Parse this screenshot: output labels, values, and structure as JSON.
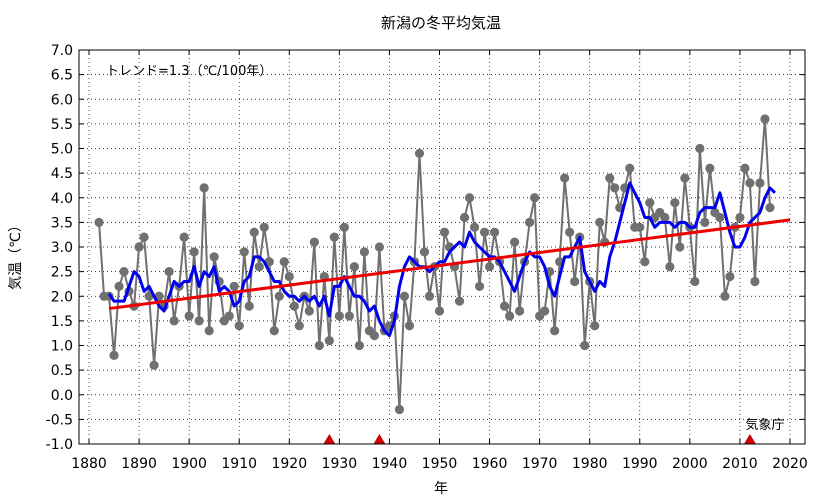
{
  "chart_data": {
    "type": "line",
    "title": "新潟の冬平均気温",
    "xlabel": "年",
    "ylabel": "気温（℃）",
    "trend_label": "トレンド=1.3（℃/100年）",
    "credit": "気象庁",
    "xlim": [
      1878,
      2023
    ],
    "ylim": [
      -1.0,
      7.0
    ],
    "x_ticks": [
      1880,
      1890,
      1900,
      1910,
      1920,
      1930,
      1940,
      1950,
      1960,
      1970,
      1980,
      1990,
      2000,
      2010,
      2020
    ],
    "y_ticks": [
      "-1.0",
      "-0.5",
      "0.0",
      "0.5",
      "1.0",
      "1.5",
      "2.0",
      "2.5",
      "3.0",
      "3.5",
      "4.0",
      "4.5",
      "5.0",
      "5.5",
      "6.0",
      "6.5",
      "7.0"
    ],
    "grid": true,
    "colors": {
      "annual": "#707070",
      "moving_avg": "#0000ee",
      "trend": "#ee0000",
      "markers": "#cc0000"
    },
    "series": [
      {
        "kind": "annual",
        "x_start": 1882,
        "values": [
          3.5,
          2.0,
          2.0,
          0.8,
          2.2,
          2.5,
          2.1,
          1.8,
          3.0,
          3.2,
          2.0,
          0.6,
          2.0,
          1.8,
          2.5,
          1.5,
          2.2,
          3.2,
          1.6,
          2.9,
          1.5,
          4.2,
          1.3,
          2.8,
          2.3,
          1.5,
          1.6,
          2.2,
          1.4,
          2.9,
          1.8,
          3.3,
          2.6,
          3.4,
          2.7,
          1.3,
          2.0,
          2.7,
          2.4,
          1.8,
          1.4,
          2.0,
          1.7,
          3.1,
          1.0,
          2.4,
          1.1,
          3.2,
          1.6,
          3.4,
          1.6,
          2.6,
          1.0,
          2.9,
          1.3,
          1.2,
          3.0,
          1.3,
          1.4,
          1.6,
          -0.3,
          2.0,
          1.4,
          2.7,
          4.9,
          2.9,
          2.0,
          2.6,
          1.7,
          3.3,
          3.0,
          2.6,
          1.9,
          3.6,
          4.0,
          3.4,
          2.2,
          3.3,
          2.6,
          3.3,
          2.7,
          1.8,
          1.6,
          3.1,
          1.7,
          2.7,
          3.5,
          4.0,
          1.6,
          1.7,
          2.5,
          1.3,
          2.7,
          4.4,
          3.3,
          2.3,
          3.2,
          1.0,
          2.3,
          1.4,
          3.5,
          3.1,
          4.4,
          4.2,
          3.8,
          4.2,
          4.6,
          3.4,
          3.4,
          2.7,
          3.9,
          3.6,
          3.7,
          3.6,
          2.6,
          3.9,
          3.0,
          4.4,
          3.4,
          2.3,
          5.0,
          3.5,
          4.6,
          3.7,
          3.6,
          2.0,
          2.4,
          3.4,
          3.6,
          4.6,
          4.3,
          2.3,
          4.3,
          5.6,
          3.8
        ]
      },
      {
        "kind": "moving_avg",
        "x_start": 1884,
        "values": [
          2.05,
          1.9,
          1.9,
          1.9,
          2.2,
          2.5,
          2.4,
          2.1,
          2.2,
          2.0,
          1.8,
          1.7,
          2.0,
          2.3,
          2.2,
          2.3,
          2.3,
          2.6,
          2.2,
          2.5,
          2.4,
          2.6,
          2.1,
          2.2,
          2.1,
          1.8,
          1.9,
          2.3,
          2.4,
          2.8,
          2.8,
          2.7,
          2.5,
          2.3,
          2.3,
          2.1,
          2.0,
          2.0,
          1.9,
          2.0,
          1.9,
          2.0,
          1.8,
          2.0,
          1.6,
          2.2,
          2.2,
          2.4,
          2.2,
          2.0,
          2.0,
          1.9,
          1.7,
          1.8,
          1.5,
          1.3,
          1.2,
          1.5,
          2.2,
          2.6,
          2.8,
          2.7,
          2.6,
          2.6,
          2.5,
          2.6,
          2.7,
          2.7,
          2.9,
          3.0,
          3.1,
          3.0,
          3.3,
          3.1,
          3.0,
          2.9,
          2.8,
          2.8,
          2.7,
          2.5,
          2.3,
          2.1,
          2.4,
          2.7,
          2.9,
          2.8,
          2.8,
          2.6,
          2.2,
          2.0,
          2.4,
          2.8,
          2.8,
          3.0,
          3.2,
          2.5,
          2.3,
          2.1,
          2.3,
          2.2,
          2.8,
          3.1,
          3.5,
          3.9,
          4.3,
          4.1,
          3.9,
          3.6,
          3.6,
          3.4,
          3.5,
          3.5,
          3.5,
          3.4,
          3.5,
          3.5,
          3.4,
          3.4,
          3.7,
          3.8,
          3.8,
          3.8,
          4.1,
          3.7,
          3.3,
          3.0,
          3.0,
          3.2,
          3.5,
          3.6,
          3.7,
          4.0,
          4.2,
          4.1
        ]
      },
      {
        "kind": "trend",
        "x": [
          1884,
          2020
        ],
        "values": [
          1.75,
          3.55
        ]
      }
    ],
    "station_change_years": [
      1928,
      1938,
      2012
    ]
  }
}
